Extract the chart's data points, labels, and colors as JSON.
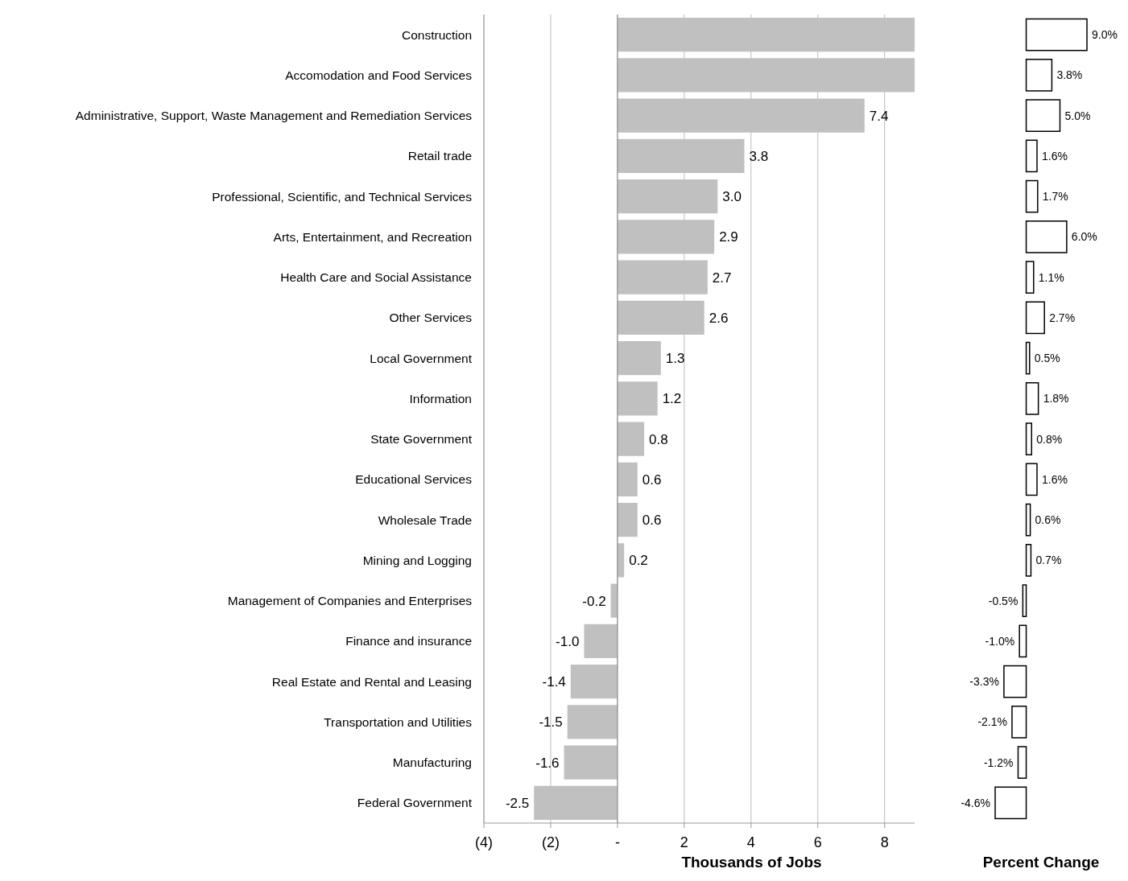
{
  "chart_data": [
    {
      "type": "bar",
      "orientation": "horizontal",
      "xlabel": "Thousands  of Jobs",
      "color": "#c0c0c0",
      "grid": "x",
      "categories": [
        "Construction",
        "Accomodation and Food Services",
        "Administrative, Support, Waste Management and Remediation Services",
        "Retail trade",
        "Professional, Scientific, and Technical Services",
        "Arts, Entertainment, and Recreation",
        "Health Care and Social Assistance",
        "Other Services",
        "Local Government",
        "Information",
        "State Government",
        "Educational Services",
        "Wholesale Trade",
        "Mining and Logging",
        "Management of Companies and Enterprises",
        "Finance and insurance",
        "Real Estate and Rental and Leasing",
        "Transportation and Utilities",
        "Manufacturing",
        "Federal Government"
      ],
      "values": [
        8.9,
        8.9,
        7.4,
        3.8,
        3.0,
        2.9,
        2.7,
        2.6,
        1.3,
        1.2,
        0.8,
        0.6,
        0.6,
        0.2,
        -0.2,
        -1.0,
        -1.4,
        -1.5,
        -1.6,
        -2.5
      ],
      "value_labels": [
        null,
        null,
        "7.4",
        "3.8",
        "3.0",
        "2.9",
        "2.7",
        "2.6",
        "1.3",
        "1.2",
        "0.8",
        "0.6",
        "0.6",
        "0.2",
        "-0.2",
        "-1.0",
        "-1.4",
        "-1.5",
        "-1.6",
        "-2.5"
      ],
      "xlim": [
        -4,
        8.9
      ],
      "xticks": [
        {
          "value": -4,
          "label": "(4)"
        },
        {
          "value": -2,
          "label": "(2)"
        },
        {
          "value": 0,
          "label": "-"
        },
        2,
        4,
        6,
        8
      ]
    },
    {
      "type": "bar",
      "orientation": "horizontal",
      "xlabel": "Percent Change",
      "color": "#ffffff",
      "categories": [
        null,
        null,
        null,
        null,
        null,
        null,
        null,
        null,
        null,
        null,
        null,
        null,
        null,
        null,
        null,
        null,
        null,
        null,
        null,
        null
      ],
      "values": [
        9.0,
        3.8,
        5.0,
        1.6,
        1.7,
        6.0,
        1.1,
        2.7,
        0.5,
        1.8,
        0.8,
        1.6,
        0.6,
        0.7,
        -0.5,
        -1.0,
        -3.3,
        -2.1,
        -1.2,
        -4.6
      ],
      "value_labels": [
        "9.0%",
        "3.8%",
        "5.0%",
        "1.6%",
        "1.7%",
        "6.0%",
        "1.1%",
        "2.7%",
        "0.5%",
        "1.8%",
        "0.8%",
        "1.6%",
        "0.6%",
        "0.7%",
        "-0.5%",
        "-1.0%",
        "-3.3%",
        "-2.1%",
        "-1.2%",
        "-4.6%"
      ]
    }
  ]
}
